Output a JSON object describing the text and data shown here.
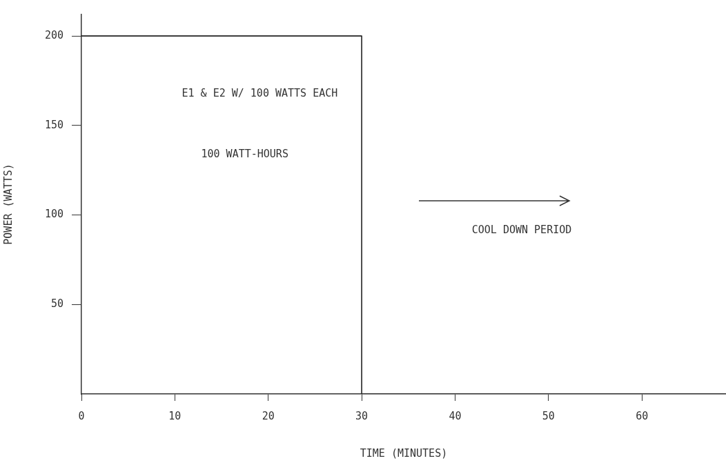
{
  "chart_data": {
    "type": "step",
    "xlabel": "TIME (MINUTES)",
    "ylabel": "POWER (WATTS)",
    "x": [
      0,
      30,
      69
    ],
    "series": [
      {
        "color": "#222222",
        "values": [
          200,
          0,
          0
        ]
      }
    ],
    "xlim": [
      0,
      69
    ],
    "xticks": [
      0,
      10,
      20,
      30,
      40,
      50,
      60
    ],
    "ylim": [
      0,
      212
    ],
    "yticks": [
      50,
      100,
      150,
      200
    ],
    "annotations": [
      "E1 & E2 W/ 100 WATTS EACH",
      "100 WATT-HOURS",
      "COOL DOWN PERIOD"
    ],
    "grid": false,
    "legend": false
  }
}
